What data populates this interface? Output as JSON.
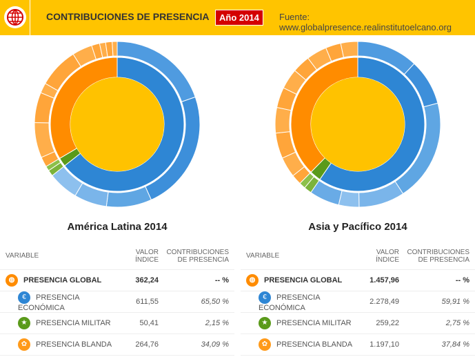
{
  "header": {
    "title": "CONTRIBUCIONES DE PRESENCIA",
    "year": "Año 2014",
    "source": "Fuente: www.globalpresence.realinstitutoelcano.org",
    "logo": "globe-icon"
  },
  "colors": {
    "header": "#ffc400",
    "economica": "#2e86d4",
    "militar": "#5a9a1a",
    "blanda": "#ff8c00",
    "global": "#ffc200"
  },
  "table_headers": {
    "variable": "VARIABLE",
    "valor": "VALOR ÍNDICE",
    "contrib": "CONTRIBUCIONES DE PRESENCIA"
  },
  "chart_data": [
    {
      "type": "pie",
      "title": "América Latina 2014",
      "series": [
        {
          "name": "PRESENCIA ECONÓMICA",
          "value": 65.5,
          "sub": [
            20,
            24,
            9,
            6.5,
            6
          ]
        },
        {
          "name": "PRESENCIA MILITAR",
          "value": 2.15,
          "sub": [
            1.2,
            0.95
          ]
        },
        {
          "name": "PRESENCIA BLANDA",
          "value": 34.09,
          "sub": [
            2,
            7,
            6,
            2,
            8,
            4,
            1.6,
            1.2,
            1.3,
            0.99
          ]
        }
      ],
      "rows": [
        {
          "name": "PRESENCIA GLOBAL",
          "valor": "362,24",
          "contrib": "-- %",
          "icon": "globe-icon"
        },
        {
          "name": "PRESENCIA ECONÓMICA",
          "valor": "611,55",
          "contrib": "65,50 %",
          "icon": "euro-icon"
        },
        {
          "name": "PRESENCIA MILITAR",
          "valor": "50,41",
          "contrib": "2,15 %",
          "icon": "military-star-icon"
        },
        {
          "name": "PRESENCIA BLANDA",
          "valor": "264,76",
          "contrib": "34,09 %",
          "icon": "soft-power-icon"
        }
      ]
    },
    {
      "type": "pie",
      "title": "Asia y Pacífico 2014",
      "series": [
        {
          "name": "PRESENCIA ECONÓMICA",
          "value": 59.91,
          "sub": [
            12,
            9,
            20,
            9,
            4,
            5.91
          ]
        },
        {
          "name": "PRESENCIA MILITAR",
          "value": 2.75,
          "sub": [
            1.5,
            1.25
          ]
        },
        {
          "name": "PRESENCIA BLANDA",
          "value": 37.84,
          "sub": [
            2,
            4,
            5,
            5,
            4,
            4,
            3.5,
            4,
            3,
            3.34
          ]
        }
      ],
      "rows": [
        {
          "name": "PRESENCIA GLOBAL",
          "valor": "1.457,96",
          "contrib": "-- %",
          "icon": "globe-icon"
        },
        {
          "name": "PRESENCIA ECONÓMICA",
          "valor": "2.278,49",
          "contrib": "59,91 %",
          "icon": "euro-icon"
        },
        {
          "name": "PRESENCIA MILITAR",
          "valor": "259,22",
          "contrib": "2,75 %",
          "icon": "military-star-icon"
        },
        {
          "name": "PRESENCIA BLANDA",
          "valor": "1.197,10",
          "contrib": "37,84 %",
          "icon": "soft-power-icon"
        }
      ]
    }
  ]
}
